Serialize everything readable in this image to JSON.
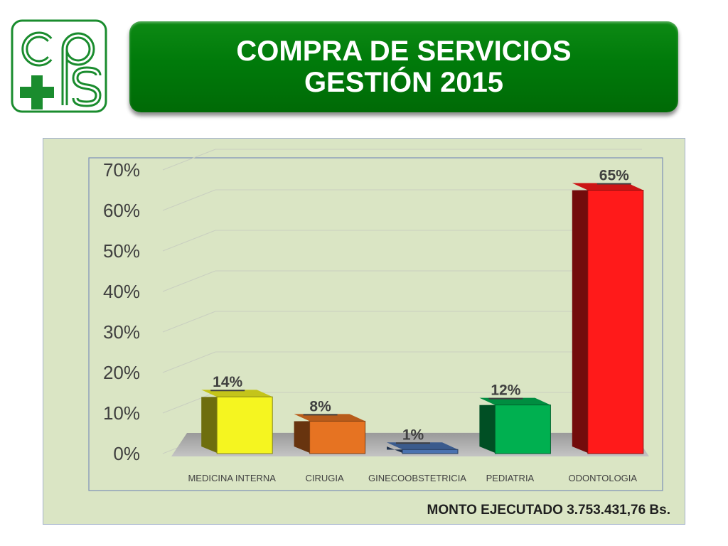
{
  "header": {
    "title_line1": "COMPRA DE SERVICIOS",
    "title_line2": "GESTIÓN 2015"
  },
  "logo": {
    "icon": "cpps-logo-icon",
    "color": "#1a8c2e"
  },
  "chart_data": {
    "type": "bar",
    "title": "",
    "xlabel": "",
    "ylabel": "",
    "categories": [
      "MEDICINA INTERNA",
      "CIRUGIA",
      "GINECOOBSTETRICIA",
      "PEDIATRIA",
      "ODONTOLOGIA"
    ],
    "values": [
      14,
      8,
      1,
      12,
      65
    ],
    "data_labels": [
      "14%",
      "8%",
      "1%",
      "12%",
      "65%"
    ],
    "y_ticks": [
      "0%",
      "10%",
      "20%",
      "30%",
      "40%",
      "50%",
      "60%",
      "70%"
    ],
    "ylim": [
      0,
      70
    ],
    "grid": true,
    "legend": "none",
    "bar_colors": [
      "#f5f520",
      "#e67322",
      "#4a72b0",
      "#00b050",
      "#ff1a1a"
    ],
    "style": "3d-column"
  },
  "footer": {
    "amount_text": "MONTO EJECUTADO 3.753.431,76  Bs."
  }
}
